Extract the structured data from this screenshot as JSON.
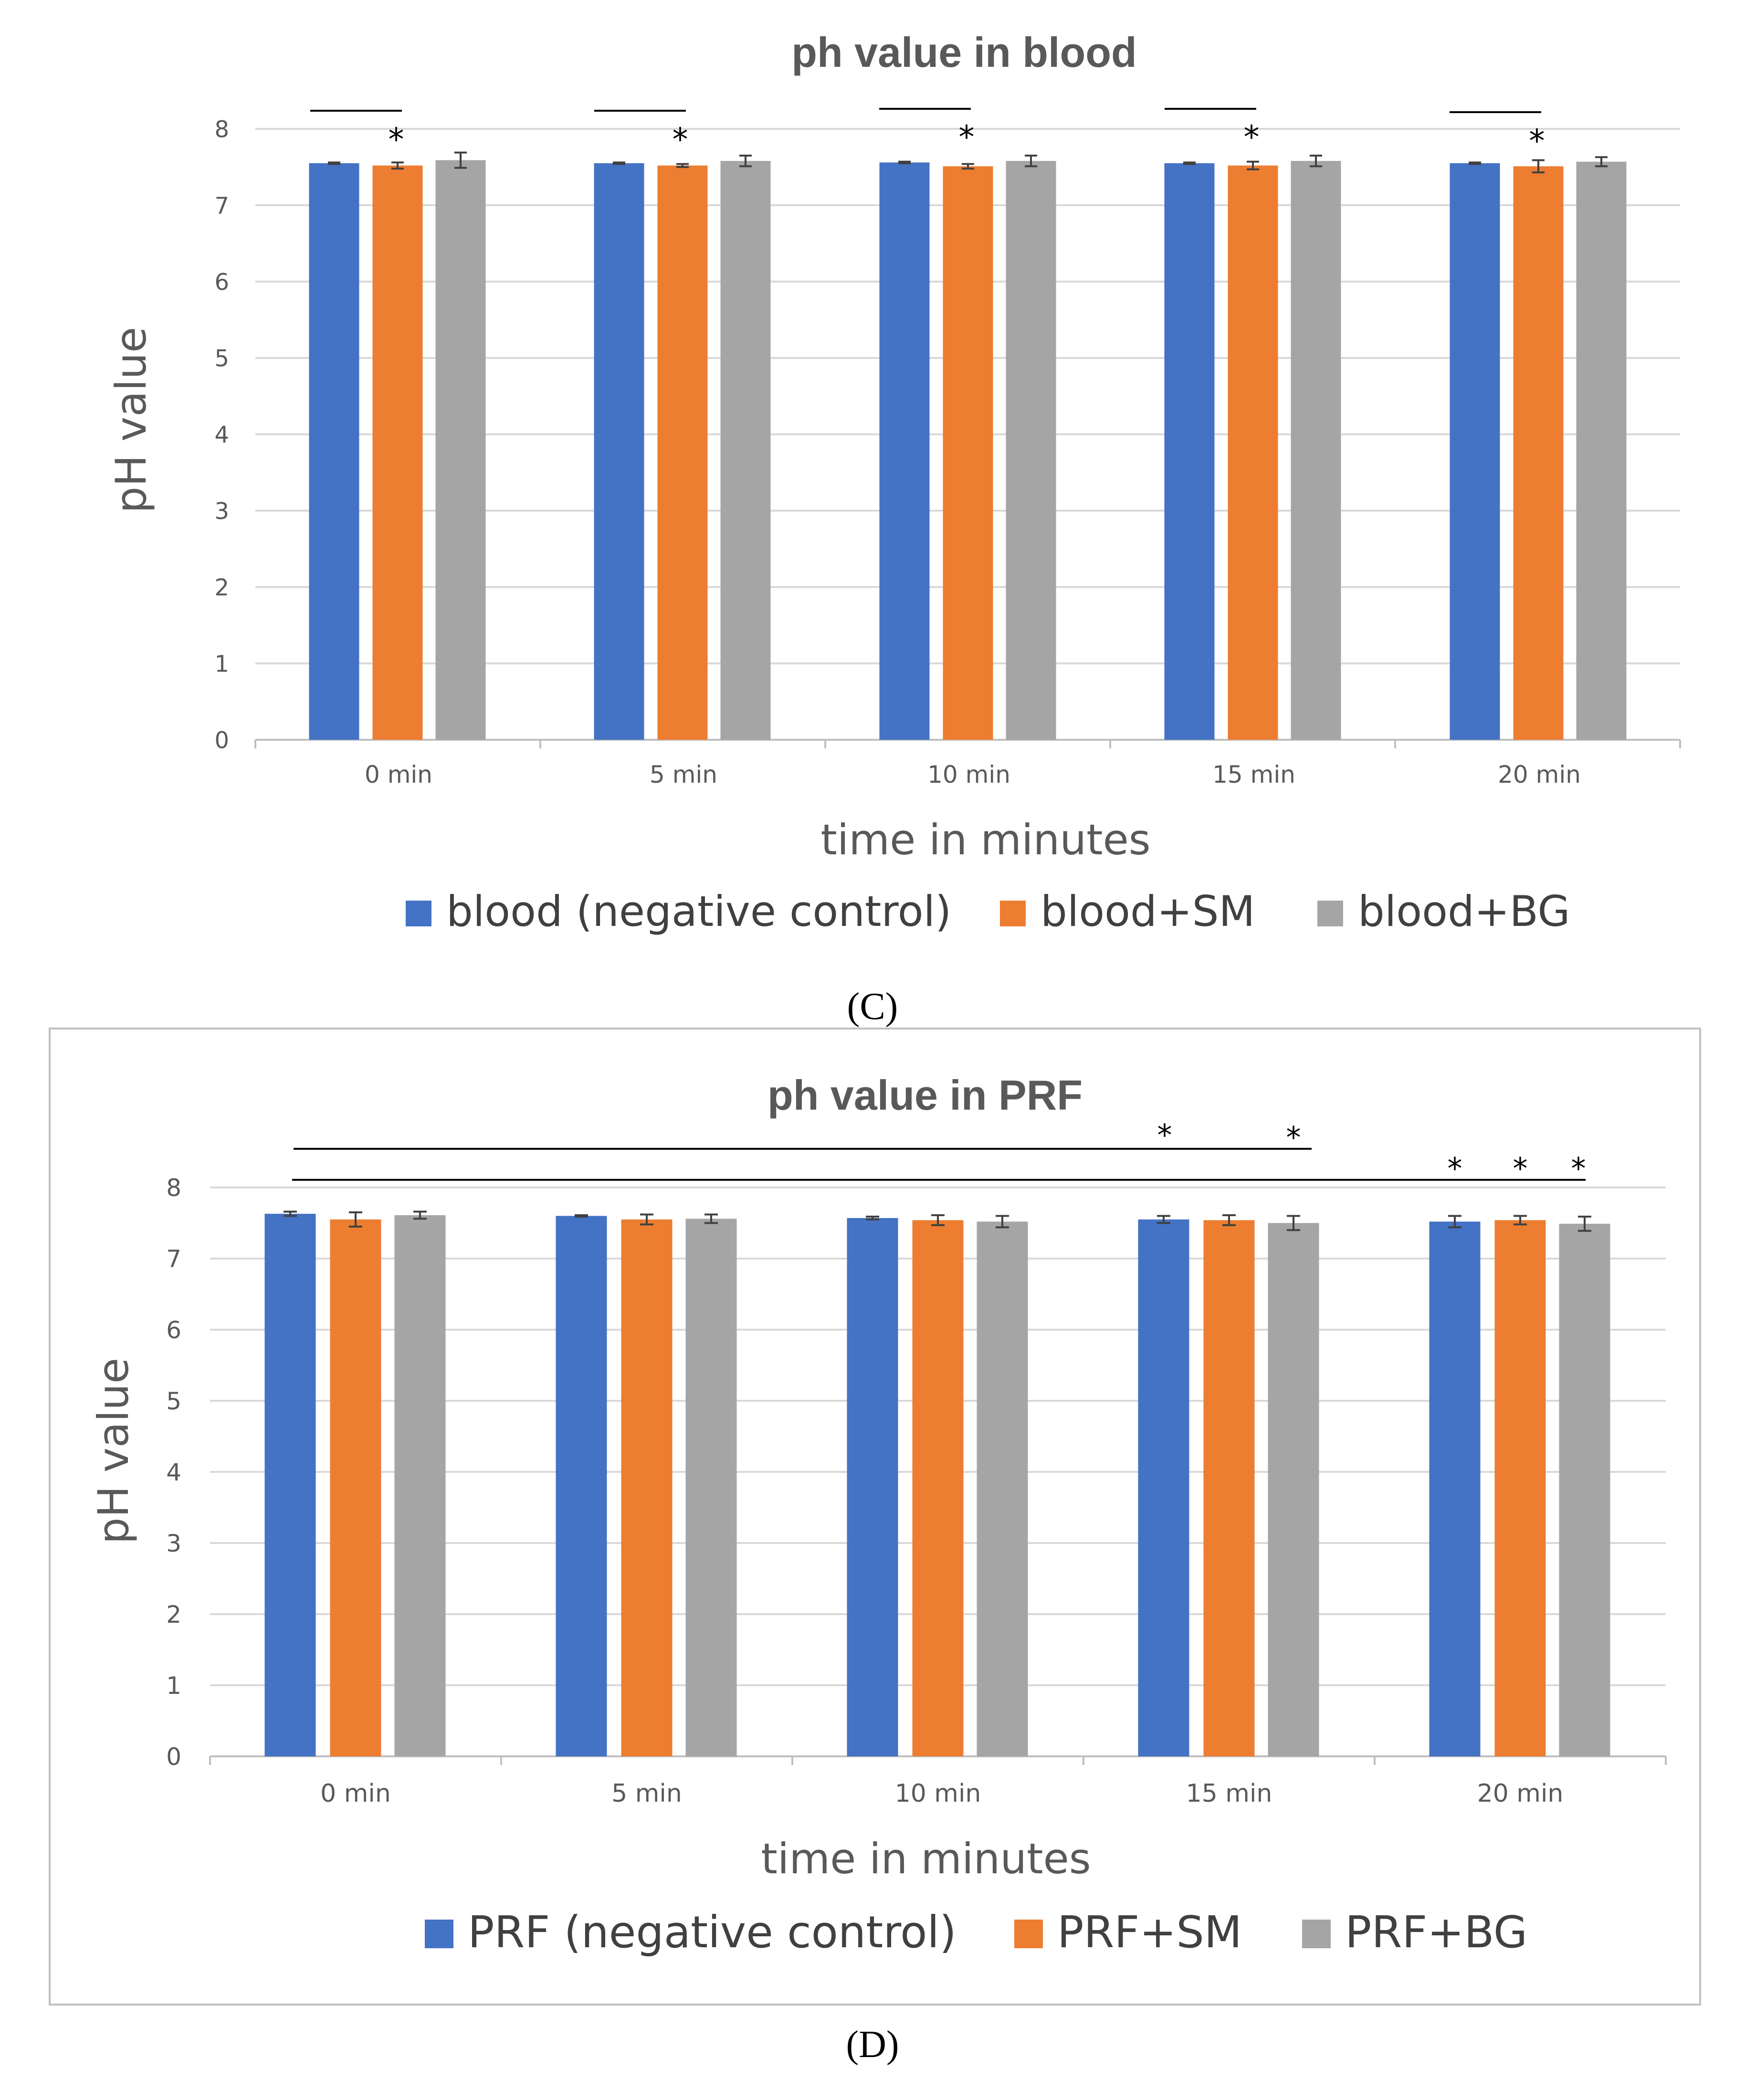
{
  "colors": {
    "series1": "#4472C4",
    "series2": "#ED7D31",
    "series3": "#A5A5A5",
    "grid": "#D9D9D9",
    "text": "#595959"
  },
  "chart_data": [
    {
      "type": "bar",
      "title": "ph value in blood",
      "xlabel": "time in minutes",
      "ylabel": "pH value",
      "ylim": [
        0,
        8
      ],
      "yticks": [
        "0",
        "1",
        "2",
        "3",
        "4",
        "5",
        "6",
        "7",
        "8"
      ],
      "categories": [
        "0 min",
        "5 min",
        "10 min",
        "15 min",
        "20 min"
      ],
      "series": [
        {
          "name": "blood (negative control)",
          "values": [
            7.55,
            7.55,
            7.56,
            7.55,
            7.55
          ],
          "errors": [
            0.01,
            0.01,
            0.01,
            0.01,
            0.01
          ]
        },
        {
          "name": "blood+SM",
          "values": [
            7.52,
            7.52,
            7.51,
            7.52,
            7.51
          ],
          "errors": [
            0.04,
            0.02,
            0.03,
            0.05,
            0.08
          ]
        },
        {
          "name": "blood+BG",
          "values": [
            7.59,
            7.58,
            7.58,
            7.58,
            7.57
          ],
          "errors": [
            0.1,
            0.07,
            0.07,
            0.07,
            0.06
          ]
        }
      ],
      "significance": "*",
      "panel_label": "(C)",
      "legend_position": "bottom"
    },
    {
      "type": "bar",
      "title": "ph value in PRF",
      "xlabel": "time in minutes",
      "ylabel": "pH value",
      "ylim": [
        0,
        8
      ],
      "yticks": [
        "0",
        "1",
        "2",
        "3",
        "4",
        "5",
        "6",
        "7",
        "8"
      ],
      "categories": [
        "0 min",
        "5 min",
        "10 min",
        "15 min",
        "20 min"
      ],
      "series": [
        {
          "name": "PRF (negative control)",
          "values": [
            7.63,
            7.6,
            7.57,
            7.55,
            7.52
          ],
          "errors": [
            0.03,
            0.01,
            0.02,
            0.05,
            0.08
          ]
        },
        {
          "name": "PRF+SM",
          "values": [
            7.55,
            7.55,
            7.54,
            7.54,
            7.54
          ],
          "errors": [
            0.1,
            0.07,
            0.07,
            0.07,
            0.06
          ]
        },
        {
          "name": "PRF+BG",
          "values": [
            7.61,
            7.56,
            7.52,
            7.5,
            7.49
          ],
          "errors": [
            0.05,
            0.06,
            0.08,
            0.1,
            0.1
          ]
        }
      ],
      "significance": "*",
      "panel_label": "(D)",
      "legend_position": "bottom"
    }
  ]
}
